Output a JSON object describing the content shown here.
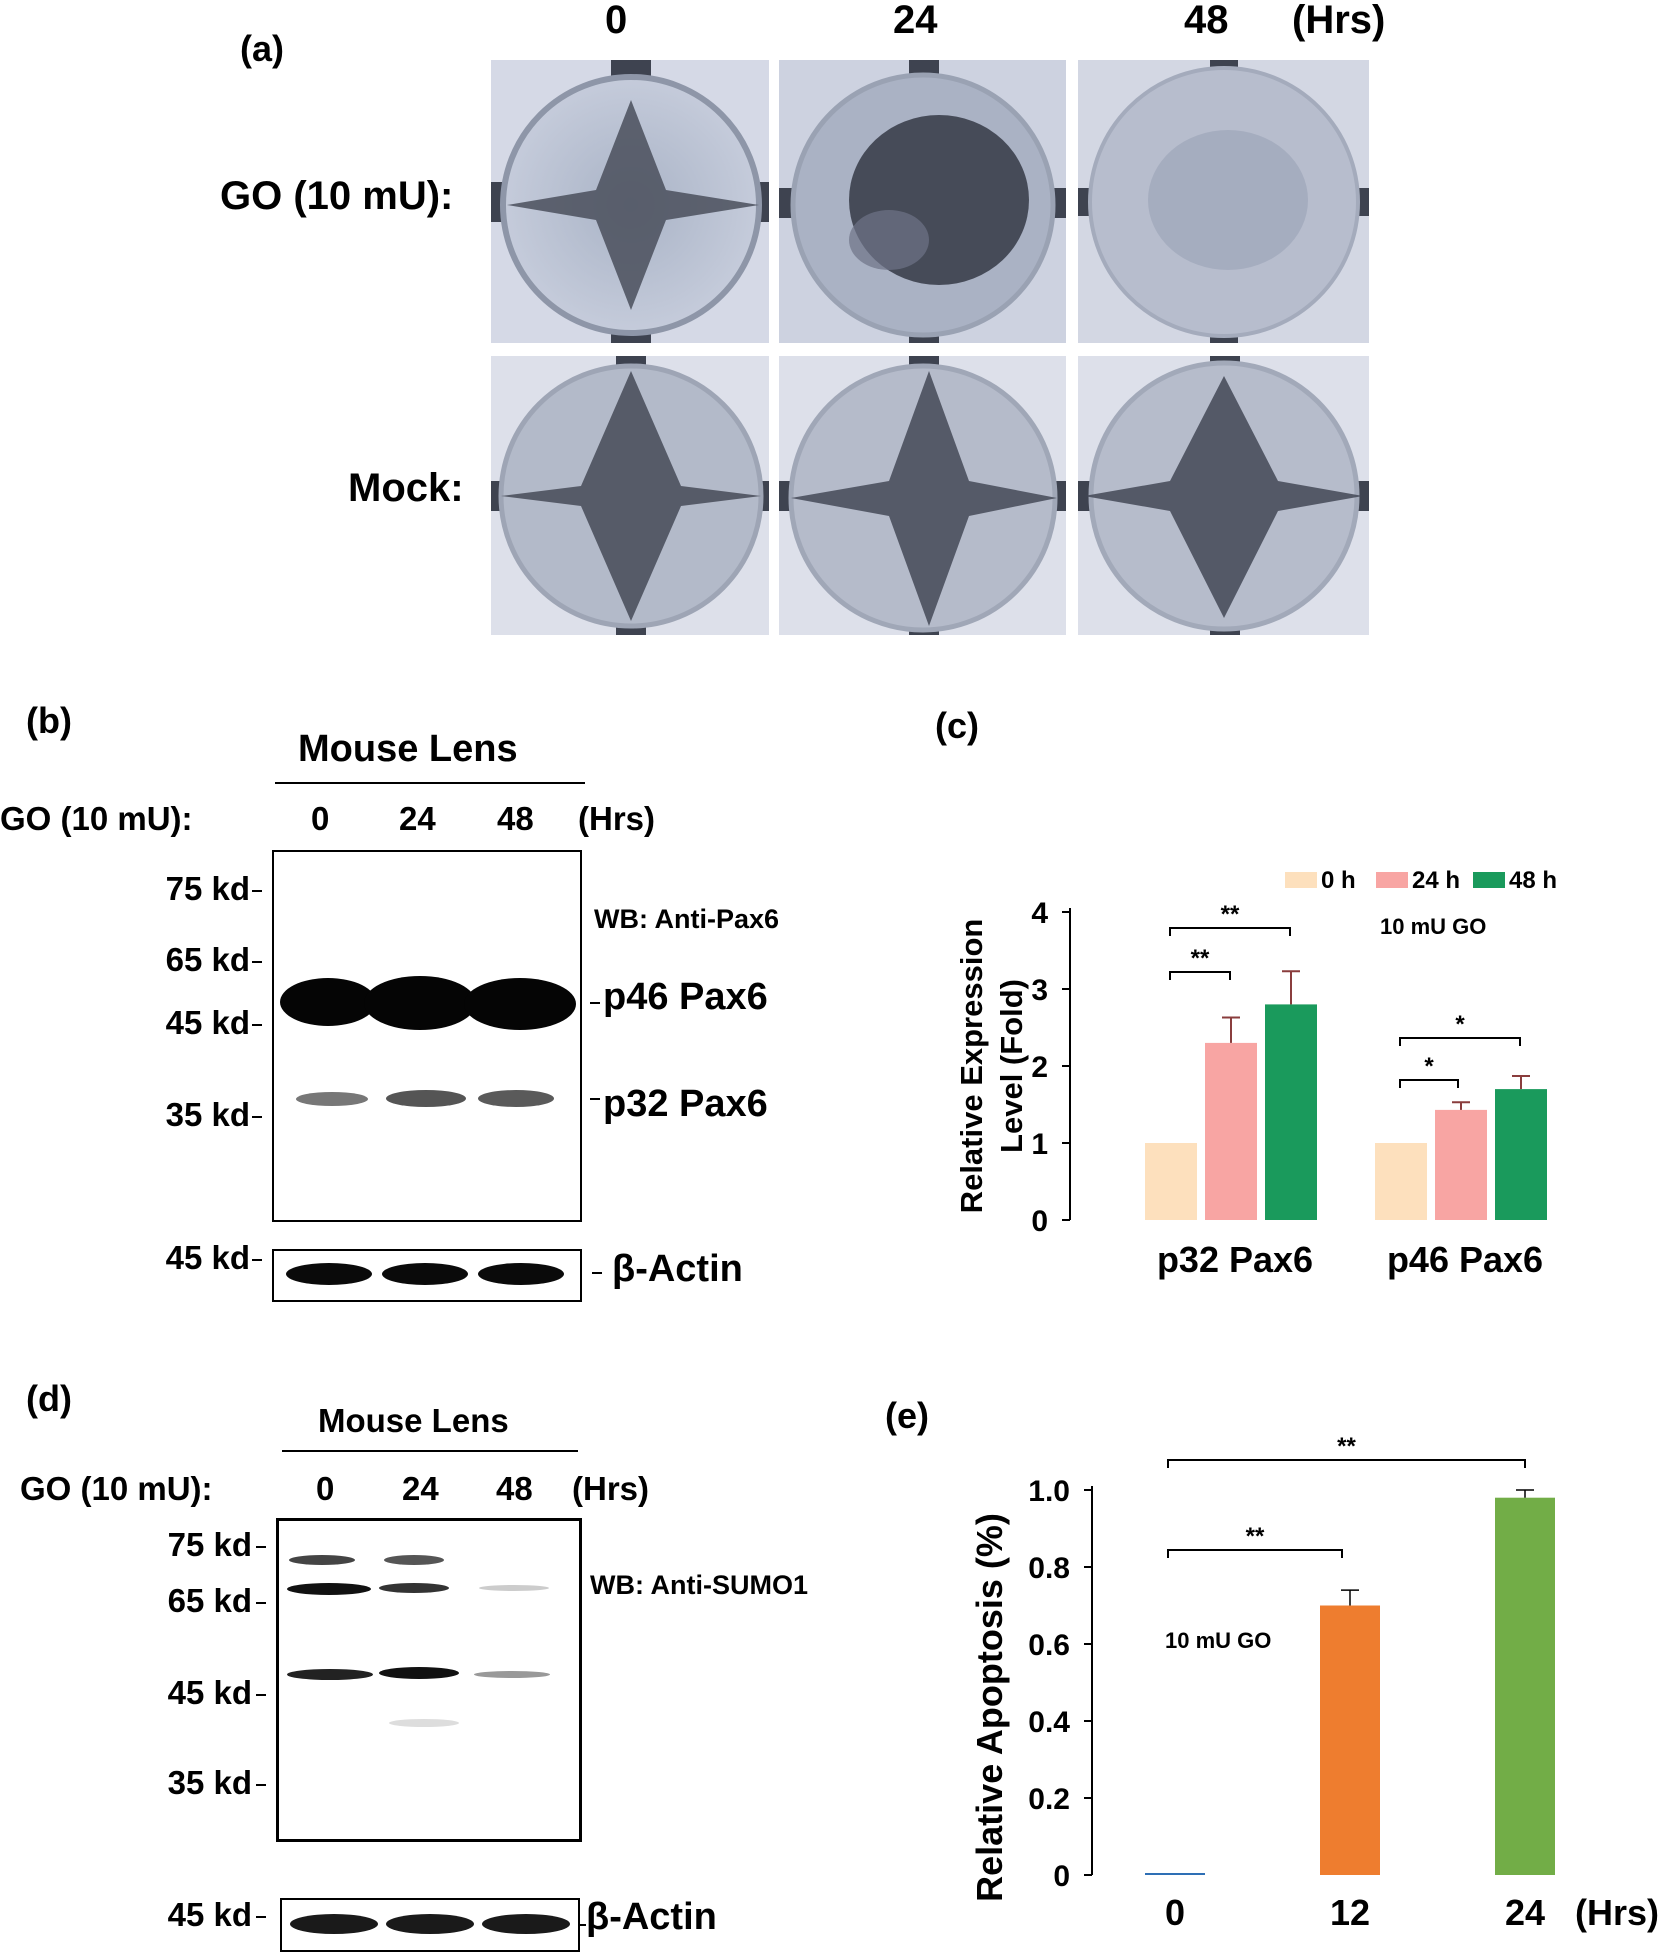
{
  "panel_a": {
    "label": "(a)",
    "time_headers": [
      "0",
      "24",
      "48"
    ],
    "time_unit": "(Hrs)",
    "row_labels": [
      "GO (10 mU):",
      "Mock:"
    ]
  },
  "panel_b": {
    "label": "(b)",
    "title": "Mouse Lens",
    "treatment_label": "GO (10 mU):",
    "lane_labels": [
      "0",
      "24",
      "48"
    ],
    "time_unit": "(Hrs)",
    "markers": [
      "75 kd",
      "65 kd",
      "45 kd",
      "35 kd"
    ],
    "wb_label": "WB: Anti-Pax6",
    "band_labels": [
      "p46 Pax6",
      "p32 Pax6"
    ],
    "actin_marker": "45 kd",
    "actin_label": "β-Actin"
  },
  "panel_c": {
    "label": "(c)",
    "annotation": "10 mU GO",
    "significance": [
      "**",
      "**",
      "*",
      "*"
    ]
  },
  "panel_d": {
    "label": "(d)",
    "title": "Mouse Lens",
    "treatment_label": "GO (10 mU):",
    "lane_labels": [
      "0",
      "24",
      "48"
    ],
    "time_unit": "(Hrs)",
    "markers": [
      "75 kd",
      "65 kd",
      "45 kd",
      "35 kd"
    ],
    "wb_label": "WB: Anti-SUMO1",
    "actin_marker": "45 kd",
    "actin_label": "β-Actin"
  },
  "panel_e": {
    "label": "(e)",
    "annotation": "10 mU GO",
    "significance": [
      "**",
      "**"
    ]
  },
  "colors": {
    "c_0h": "#fde0bd",
    "c_24h": "#f8a5a3",
    "c_48h": "#1a9a5c",
    "e_12": "#ee7d2f",
    "e_24": "#72ad47",
    "e_0": "#2e6fb5"
  },
  "chart_data": [
    {
      "type": "bar",
      "panel": "c",
      "categories": [
        "p32 Pax6",
        "p46 Pax6"
      ],
      "series": [
        {
          "name": "0 h",
          "values": [
            1.0,
            1.0
          ],
          "errors": [
            0,
            0
          ]
        },
        {
          "name": "24 h",
          "values": [
            2.3,
            1.43
          ],
          "errors": [
            0.33,
            0.1
          ]
        },
        {
          "name": "48 h",
          "values": [
            2.8,
            1.7
          ],
          "errors": [
            0.43,
            0.17
          ]
        }
      ],
      "ylabel": "Relative Expression Level (Fold)",
      "ylim": [
        0,
        4
      ],
      "yticks": [
        "0",
        "1",
        "2",
        "3",
        "4"
      ],
      "legend_position": "top-right"
    },
    {
      "type": "bar",
      "panel": "e",
      "categories": [
        "0",
        "12",
        "24"
      ],
      "values": [
        0.0,
        0.7,
        0.98
      ],
      "errors": [
        0,
        0.04,
        0.02
      ],
      "x_unit": "(Hrs)",
      "ylabel": "Relative Apoptosis (%)",
      "ylim": [
        0,
        1.0
      ],
      "yticks": [
        "0",
        "0.2",
        "0.4",
        "0.6",
        "0.8",
        "1.0"
      ]
    }
  ]
}
